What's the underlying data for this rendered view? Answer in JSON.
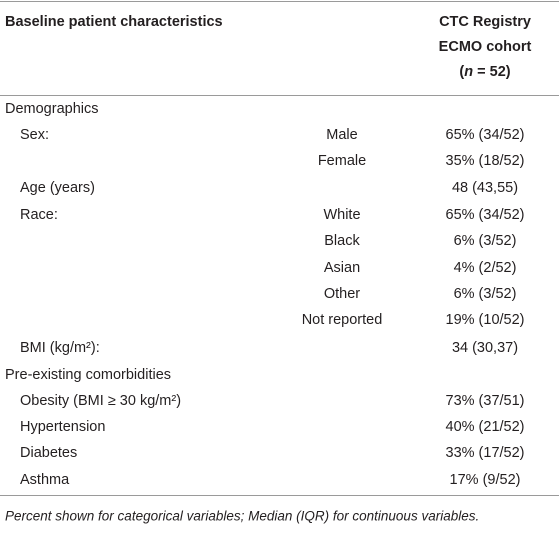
{
  "header": {
    "column1": "Baseline patient characteristics",
    "column3": {
      "lines": [
        "CTC Registry",
        "ECMO cohort"
      ],
      "n_open": "(",
      "n_symbol": "n",
      "n_rest": " = 52)"
    }
  },
  "table": {
    "rows": [
      {
        "section": "Demographics"
      },
      {
        "label": "Sex:",
        "subgroup": "Male",
        "value": "65% (34/52)"
      },
      {
        "subgroup": "Female",
        "value": "35% (18/52)"
      },
      {
        "label": "Age (years)",
        "value": "48 (43,55)"
      },
      {
        "label": "Race:",
        "subgroup": "White",
        "value": "65% (34/52)"
      },
      {
        "subgroup": "Black",
        "value": "6% (3/52)"
      },
      {
        "subgroup": "Asian",
        "value": "4% (2/52)"
      },
      {
        "subgroup": "Other",
        "value": "6% (3/52)"
      },
      {
        "subgroup": "Not reported",
        "value": "19% (10/52)"
      },
      {
        "label": "BMI (kg/m²):",
        "value": "34 (30,37)"
      },
      {
        "section": "Pre-existing comorbidities"
      },
      {
        "label": "Obesity (BMI ≥ 30 kg/m²)",
        "value": "73% (37/51)"
      },
      {
        "label": "Hypertension",
        "value": "40% (21/52)"
      },
      {
        "label": "Diabetes",
        "value": "33% (17/52)"
      },
      {
        "label": "Asthma",
        "value": "17% (9/52)"
      }
    ]
  },
  "footnote": "Percent shown for categorical variables; Median (IQR) for continuous variables."
}
